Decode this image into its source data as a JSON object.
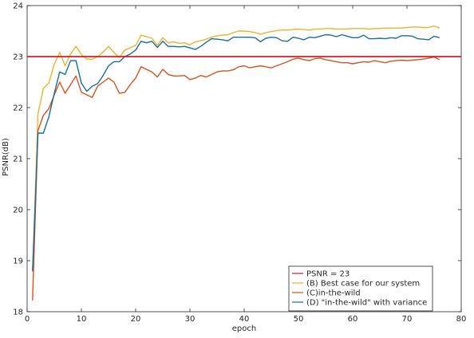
{
  "chart_data": {
    "type": "line",
    "xlabel": "epoch",
    "ylabel": "PSNR(dB)",
    "xlim": [
      0,
      80
    ],
    "ylim": [
      18,
      24
    ],
    "xticks": [
      0,
      10,
      20,
      30,
      40,
      50,
      60,
      70,
      80
    ],
    "yticks": [
      18,
      19,
      20,
      21,
      22,
      23,
      24
    ],
    "grid": false,
    "legend_position": "bottom-right",
    "reference_line": {
      "name": "PSNR = 23",
      "value": 23,
      "color": "#c0242a"
    },
    "series": [
      {
        "name": "(B) Best case for our system",
        "color": "#e8b430",
        "x": [
          1,
          2,
          3,
          4,
          5,
          6,
          7,
          8,
          9,
          10,
          11,
          12,
          13,
          14,
          15,
          16,
          17,
          18,
          19,
          20,
          21,
          22,
          23,
          24,
          25,
          26,
          27,
          28,
          29,
          30,
          31,
          32,
          33,
          34,
          35,
          36,
          37,
          38,
          39,
          40,
          41,
          42,
          43,
          44,
          45,
          46,
          47,
          48,
          49,
          50,
          51,
          52,
          53,
          54,
          55,
          56,
          57,
          58,
          59,
          60,
          61,
          62,
          63,
          64,
          65,
          66,
          67,
          68,
          69,
          70,
          71,
          72,
          73,
          74,
          75,
          76
        ],
        "y": [
          18.78,
          21.88,
          22.38,
          22.48,
          22.85,
          23.08,
          22.82,
          23.05,
          23.2,
          23.04,
          22.95,
          22.95,
          23.0,
          23.09,
          23.2,
          23.08,
          22.98,
          23.13,
          23.17,
          23.22,
          23.42,
          23.39,
          23.36,
          23.22,
          23.37,
          23.27,
          23.29,
          23.26,
          23.27,
          23.23,
          23.29,
          23.31,
          23.34,
          23.38,
          23.41,
          23.42,
          23.43,
          23.47,
          23.5,
          23.5,
          23.49,
          23.47,
          23.44,
          23.47,
          23.49,
          23.51,
          23.52,
          23.52,
          23.53,
          23.54,
          23.53,
          23.52,
          23.54,
          23.54,
          23.55,
          23.55,
          23.54,
          23.54,
          23.54,
          23.55,
          23.55,
          23.55,
          23.54,
          23.55,
          23.55,
          23.56,
          23.56,
          23.56,
          23.56,
          23.57,
          23.58,
          23.58,
          23.57,
          23.57,
          23.6,
          23.56
        ]
      },
      {
        "name": "(C)in-the-wild",
        "color": "#d2541f",
        "x": [
          1,
          2,
          3,
          4,
          5,
          6,
          7,
          8,
          9,
          10,
          11,
          12,
          13,
          14,
          15,
          16,
          17,
          18,
          19,
          20,
          21,
          22,
          23,
          24,
          25,
          26,
          27,
          28,
          29,
          30,
          31,
          32,
          33,
          34,
          35,
          36,
          37,
          38,
          39,
          40,
          41,
          42,
          43,
          44,
          45,
          46,
          47,
          48,
          49,
          50,
          51,
          52,
          53,
          54,
          55,
          56,
          57,
          58,
          59,
          60,
          61,
          62,
          63,
          64,
          65,
          66,
          67,
          68,
          69,
          70,
          71,
          72,
          73,
          74,
          75,
          76
        ],
        "y": [
          18.22,
          21.55,
          21.85,
          21.98,
          22.25,
          22.5,
          22.28,
          22.45,
          22.62,
          22.3,
          22.25,
          22.2,
          22.42,
          22.5,
          22.58,
          22.5,
          22.28,
          22.3,
          22.45,
          22.58,
          22.8,
          22.75,
          22.7,
          22.6,
          22.75,
          22.65,
          22.62,
          22.62,
          22.63,
          22.55,
          22.58,
          22.63,
          22.6,
          22.65,
          22.7,
          22.72,
          22.72,
          22.74,
          22.8,
          22.82,
          22.78,
          22.8,
          22.82,
          22.8,
          22.78,
          22.82,
          22.86,
          22.9,
          22.95,
          22.97,
          22.94,
          22.92,
          22.96,
          22.97,
          22.94,
          22.92,
          22.9,
          22.88,
          22.88,
          22.86,
          22.88,
          22.9,
          22.89,
          22.92,
          22.9,
          22.88,
          22.91,
          22.92,
          22.93,
          22.92,
          22.93,
          22.94,
          22.95,
          22.97,
          22.99,
          22.94
        ]
      },
      {
        "name": "(D) \"in-the-wild\" with variance",
        "color": "#1a6e9e",
        "x": [
          1,
          2,
          3,
          4,
          5,
          6,
          7,
          8,
          9,
          10,
          11,
          12,
          13,
          14,
          15,
          16,
          17,
          18,
          19,
          20,
          21,
          22,
          23,
          24,
          25,
          26,
          27,
          28,
          29,
          30,
          31,
          32,
          33,
          34,
          35,
          36,
          37,
          38,
          39,
          40,
          41,
          42,
          43,
          44,
          45,
          46,
          47,
          48,
          49,
          50,
          51,
          52,
          53,
          54,
          55,
          56,
          57,
          58,
          59,
          60,
          61,
          62,
          63,
          64,
          65,
          66,
          67,
          68,
          69,
          70,
          71,
          72,
          73,
          74,
          75,
          76
        ],
        "y": [
          18.8,
          21.5,
          21.5,
          21.82,
          22.28,
          22.7,
          22.65,
          22.92,
          22.92,
          22.48,
          22.32,
          22.42,
          22.47,
          22.63,
          22.82,
          22.9,
          22.9,
          23.0,
          23.05,
          23.13,
          23.3,
          23.27,
          23.3,
          23.18,
          23.3,
          23.2,
          23.2,
          23.19,
          23.2,
          23.17,
          23.14,
          23.2,
          23.28,
          23.35,
          23.34,
          23.33,
          23.31,
          23.38,
          23.38,
          23.38,
          23.38,
          23.37,
          23.29,
          23.36,
          23.38,
          23.37,
          23.31,
          23.3,
          23.38,
          23.36,
          23.33,
          23.38,
          23.37,
          23.4,
          23.43,
          23.42,
          23.39,
          23.43,
          23.4,
          23.37,
          23.37,
          23.42,
          23.35,
          23.35,
          23.36,
          23.35,
          23.37,
          23.36,
          23.41,
          23.41,
          23.4,
          23.35,
          23.34,
          23.33,
          23.4,
          23.37
        ]
      }
    ]
  }
}
